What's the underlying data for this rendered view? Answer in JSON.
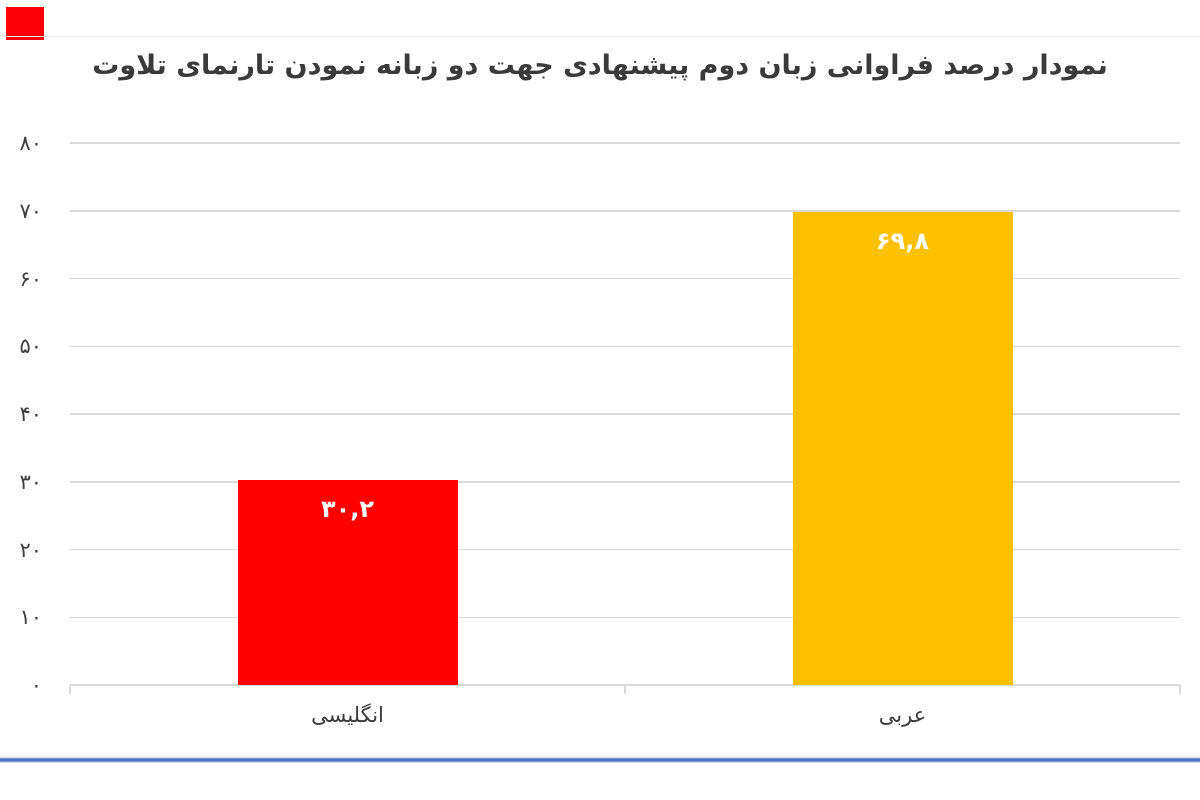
{
  "page": {
    "background": "#ffffff",
    "top_border_color": "#ececec",
    "corner_mark_color": "#fb0006",
    "bottom_rule_color": "#4e73be"
  },
  "chart_data": {
    "type": "bar",
    "title": "نمودار درصد فراوانی زبان دوم پیشنهادی جهت دو زبانه نمودن تارنمای تلاوت",
    "title_color": "#3a3a3a",
    "categories": [
      "انگلیسی",
      "عربی"
    ],
    "values": [
      30.2,
      69.8
    ],
    "value_labels": [
      "۳۰,۲",
      "۶۹,۸"
    ],
    "value_label_color": "#ffffff",
    "series_colors": [
      "#ff0000",
      "#ffc000"
    ],
    "ylim": [
      0,
      80
    ],
    "ytick_interval": 10,
    "ytick_labels_top_to_bottom": [
      "۸۰",
      "۷۰",
      "۶۰",
      "۵۰",
      "۴۰",
      "۳۰",
      "۲۰",
      "۱۰",
      "۰"
    ],
    "grid": true,
    "gridline_color": "#d9d9d9",
    "axis_color": "#d9d9d9",
    "tick_label_color": "#3f3f3f",
    "legend": false,
    "direction": "rtl",
    "xlabel": "",
    "ylabel": ""
  }
}
